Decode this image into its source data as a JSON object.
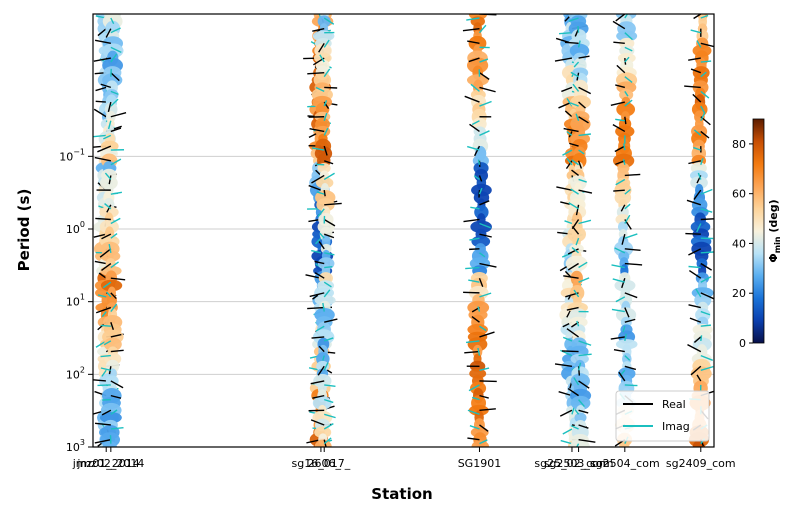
{
  "chart_data": {
    "type": "scatter",
    "title": "",
    "xlabel": "Station",
    "ylabel": "Period (s)",
    "y_scale": "log",
    "y_inverted": true,
    "ylim": [
      0.0011,
      1000
    ],
    "yticks": [
      {
        "value": 0.1,
        "base": "10",
        "exp": "−1"
      },
      {
        "value": 1,
        "base": "10",
        "exp": "0"
      },
      {
        "value": 10,
        "base": "10",
        "exp": "1"
      },
      {
        "value": 100,
        "base": "10",
        "exp": "2"
      },
      {
        "value": 1000,
        "base": "10",
        "exp": "3"
      }
    ],
    "grid": "horizontal",
    "stations": [
      {
        "name": "jmz01_2014",
        "x": 0.0
      },
      {
        "name": "jmz02_2014",
        "x": 0.07
      },
      {
        "name": "sg16_017_",
        "x": 3.25
      },
      {
        "name": "2606_",
        "x": 3.3
      },
      {
        "name": "SG1901",
        "x": 5.65
      },
      {
        "name": "sg25_02_com",
        "x": 7.05
      },
      {
        "name": "sg2503_com",
        "x": 7.15
      },
      {
        "name": "sg2504_com",
        "x": 7.85
      },
      {
        "name": "sg2409_com",
        "x": 9.0
      }
    ],
    "xlim": [
      -0.2,
      9.2
    ],
    "legend": {
      "placement": "lower-right",
      "entries": [
        {
          "label": "Real",
          "color": "#000000"
        },
        {
          "label": "Imag",
          "color": "#1bbfbf"
        }
      ]
    },
    "colorbar": {
      "label": "Φ_min (deg)",
      "label_main": "Φ",
      "label_sub": "min",
      "label_tail": " (deg)",
      "range": [
        0,
        90
      ],
      "ticks": [
        "0",
        "20",
        "40",
        "60",
        "80"
      ],
      "tick_values": [
        0,
        20,
        40,
        60,
        80
      ],
      "colormap": [
        "#08104a",
        "#0b3fae",
        "#1a73d8",
        "#5aaef0",
        "#b8e2f6",
        "#f8f1dc",
        "#fdd39a",
        "#fca454",
        "#f37a10",
        "#c74f04",
        "#5b1c00"
      ]
    },
    "series": [
      {
        "name": "Real",
        "kind": "induction-arrows",
        "color": "#000000"
      },
      {
        "name": "Imag",
        "kind": "induction-arrows",
        "color": "#1bbfbf"
      },
      {
        "name": "",
        "kind": "phase-tensor-ellipses",
        "color_by": "Φ_min"
      }
    ]
  }
}
